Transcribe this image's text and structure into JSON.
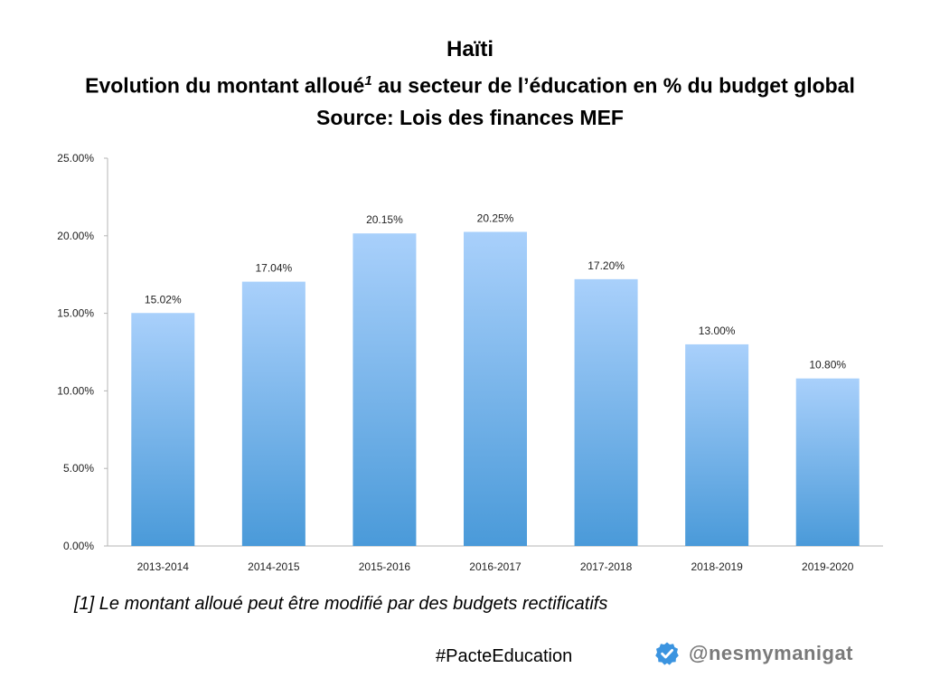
{
  "title": {
    "line1": "Haïti",
    "line2_main": "Evolution du montant alloué",
    "line2_sup": "1",
    "line2_rest": " au secteur de l’éducation en % du budget global",
    "line3": "Source: Lois des finances MEF"
  },
  "footnote": "[1] Le montant alloué peut être modifié par des budgets rectificatifs",
  "hashtag": "#PacteEducation",
  "handle": "@nesmymanigat",
  "icons": {
    "verified": "verified-badge-icon"
  },
  "colors": {
    "bar_top": "#a9d0fb",
    "bar_bottom": "#4a9ad9",
    "badge": "#3b94e0"
  },
  "chart_data": {
    "type": "bar",
    "categories": [
      "2013-2014",
      "2014-2015",
      "2015-2016",
      "2016-2017",
      "2017-2018",
      "2018-2019",
      "2019-2020"
    ],
    "values": [
      15.02,
      17.04,
      20.15,
      20.25,
      17.2,
      13.0,
      10.8
    ],
    "data_labels": [
      "15.02%",
      "17.04%",
      "20.15%",
      "20.25%",
      "17.20%",
      "13.00%",
      "10.80%"
    ],
    "yticks": [
      "0.00%",
      "5.00%",
      "10.00%",
      "15.00%",
      "20.00%",
      "25.00%"
    ],
    "ylim": [
      0,
      25
    ],
    "grid": false,
    "legend": "none"
  }
}
